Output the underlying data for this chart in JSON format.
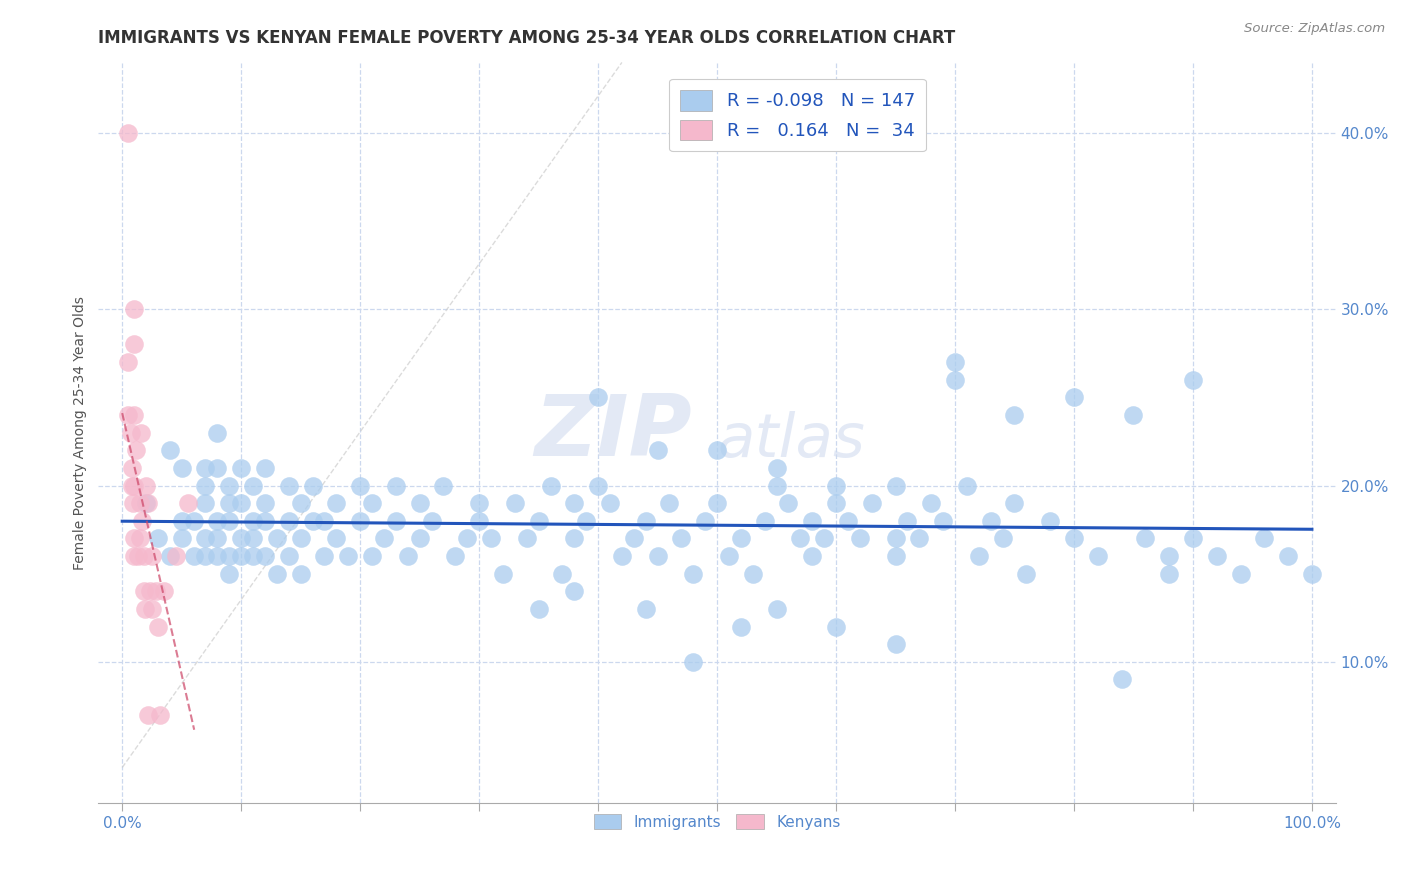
{
  "title": "IMMIGRANTS VS KENYAN FEMALE POVERTY AMONG 25-34 YEAR OLDS CORRELATION CHART",
  "source": "Source: ZipAtlas.com",
  "ylabel": "Female Poverty Among 25-34 Year Olds",
  "xlim": [
    -0.02,
    1.02
  ],
  "ylim": [
    0.02,
    0.44
  ],
  "xticks": [
    0.0,
    0.1,
    0.2,
    0.3,
    0.4,
    0.5,
    0.6,
    0.7,
    0.8,
    0.9,
    1.0
  ],
  "yticks": [
    0.1,
    0.2,
    0.3,
    0.4
  ],
  "yticklabels": [
    "10.0%",
    "20.0%",
    "30.0%",
    "40.0%"
  ],
  "legend_R_blue": "-0.098",
  "legend_N_blue": "147",
  "legend_R_pink": "0.164",
  "legend_N_pink": "34",
  "blue_color": "#aaccee",
  "pink_color": "#f5b8cc",
  "blue_line_color": "#2255bb",
  "pink_line_color": "#cc4466",
  "title_color": "#333333",
  "tick_color": "#5588cc",
  "watermark_ZIP": "ZIP",
  "watermark_atlas": "atlas",
  "background_color": "#ffffff",
  "grid_color": "#ccd8ee",
  "immigrants_x": [
    0.02,
    0.03,
    0.04,
    0.04,
    0.05,
    0.05,
    0.05,
    0.06,
    0.06,
    0.07,
    0.07,
    0.07,
    0.07,
    0.07,
    0.08,
    0.08,
    0.08,
    0.08,
    0.08,
    0.09,
    0.09,
    0.09,
    0.09,
    0.09,
    0.1,
    0.1,
    0.1,
    0.1,
    0.11,
    0.11,
    0.11,
    0.11,
    0.12,
    0.12,
    0.12,
    0.12,
    0.13,
    0.13,
    0.14,
    0.14,
    0.14,
    0.15,
    0.15,
    0.15,
    0.16,
    0.16,
    0.17,
    0.17,
    0.18,
    0.18,
    0.19,
    0.2,
    0.2,
    0.21,
    0.21,
    0.22,
    0.23,
    0.23,
    0.24,
    0.25,
    0.25,
    0.26,
    0.27,
    0.28,
    0.29,
    0.3,
    0.3,
    0.31,
    0.32,
    0.33,
    0.34,
    0.35,
    0.36,
    0.37,
    0.38,
    0.38,
    0.39,
    0.4,
    0.41,
    0.42,
    0.43,
    0.44,
    0.45,
    0.46,
    0.47,
    0.48,
    0.49,
    0.5,
    0.51,
    0.52,
    0.53,
    0.54,
    0.55,
    0.56,
    0.57,
    0.58,
    0.58,
    0.59,
    0.6,
    0.61,
    0.62,
    0.63,
    0.65,
    0.65,
    0.66,
    0.67,
    0.68,
    0.69,
    0.7,
    0.71,
    0.72,
    0.73,
    0.74,
    0.75,
    0.76,
    0.78,
    0.8,
    0.82,
    0.84,
    0.86,
    0.88,
    0.88,
    0.9,
    0.92,
    0.94,
    0.96,
    0.98,
    1.0,
    0.4,
    0.45,
    0.5,
    0.55,
    0.6,
    0.65,
    0.7,
    0.75,
    0.8,
    0.85,
    0.9,
    0.55,
    0.6,
    0.65,
    0.48,
    0.52,
    0.44,
    0.38,
    0.35
  ],
  "immigrants_y": [
    0.19,
    0.17,
    0.22,
    0.16,
    0.21,
    0.18,
    0.17,
    0.16,
    0.18,
    0.17,
    0.2,
    0.16,
    0.21,
    0.19,
    0.23,
    0.18,
    0.16,
    0.21,
    0.17,
    0.18,
    0.15,
    0.19,
    0.16,
    0.2,
    0.17,
    0.19,
    0.16,
    0.21,
    0.18,
    0.16,
    0.2,
    0.17,
    0.19,
    0.16,
    0.21,
    0.18,
    0.17,
    0.15,
    0.18,
    0.16,
    0.2,
    0.17,
    0.19,
    0.15,
    0.18,
    0.2,
    0.16,
    0.18,
    0.17,
    0.19,
    0.16,
    0.18,
    0.2,
    0.16,
    0.19,
    0.17,
    0.18,
    0.2,
    0.16,
    0.19,
    0.17,
    0.18,
    0.2,
    0.16,
    0.17,
    0.19,
    0.18,
    0.17,
    0.15,
    0.19,
    0.17,
    0.18,
    0.2,
    0.15,
    0.17,
    0.19,
    0.18,
    0.2,
    0.19,
    0.16,
    0.17,
    0.18,
    0.16,
    0.19,
    0.17,
    0.15,
    0.18,
    0.19,
    0.16,
    0.17,
    0.15,
    0.18,
    0.2,
    0.19,
    0.17,
    0.16,
    0.18,
    0.17,
    0.19,
    0.18,
    0.17,
    0.19,
    0.17,
    0.16,
    0.18,
    0.17,
    0.19,
    0.18,
    0.27,
    0.2,
    0.16,
    0.18,
    0.17,
    0.19,
    0.15,
    0.18,
    0.17,
    0.16,
    0.09,
    0.17,
    0.16,
    0.15,
    0.17,
    0.16,
    0.15,
    0.17,
    0.16,
    0.15,
    0.25,
    0.22,
    0.22,
    0.21,
    0.2,
    0.2,
    0.26,
    0.24,
    0.25,
    0.24,
    0.26,
    0.13,
    0.12,
    0.11,
    0.1,
    0.12,
    0.13,
    0.14,
    0.13
  ],
  "kenyans_x": [
    0.005,
    0.005,
    0.005,
    0.007,
    0.008,
    0.008,
    0.009,
    0.01,
    0.01,
    0.01,
    0.01,
    0.01,
    0.01,
    0.012,
    0.013,
    0.015,
    0.015,
    0.016,
    0.017,
    0.018,
    0.018,
    0.019,
    0.02,
    0.022,
    0.022,
    0.023,
    0.025,
    0.025,
    0.028,
    0.03,
    0.032,
    0.035,
    0.045,
    0.055
  ],
  "kenyans_y": [
    0.4,
    0.27,
    0.24,
    0.23,
    0.21,
    0.2,
    0.19,
    0.3,
    0.28,
    0.24,
    0.2,
    0.17,
    0.16,
    0.22,
    0.16,
    0.19,
    0.17,
    0.23,
    0.18,
    0.16,
    0.14,
    0.13,
    0.2,
    0.19,
    0.07,
    0.14,
    0.16,
    0.13,
    0.14,
    0.12,
    0.07,
    0.14,
    0.16,
    0.19
  ]
}
